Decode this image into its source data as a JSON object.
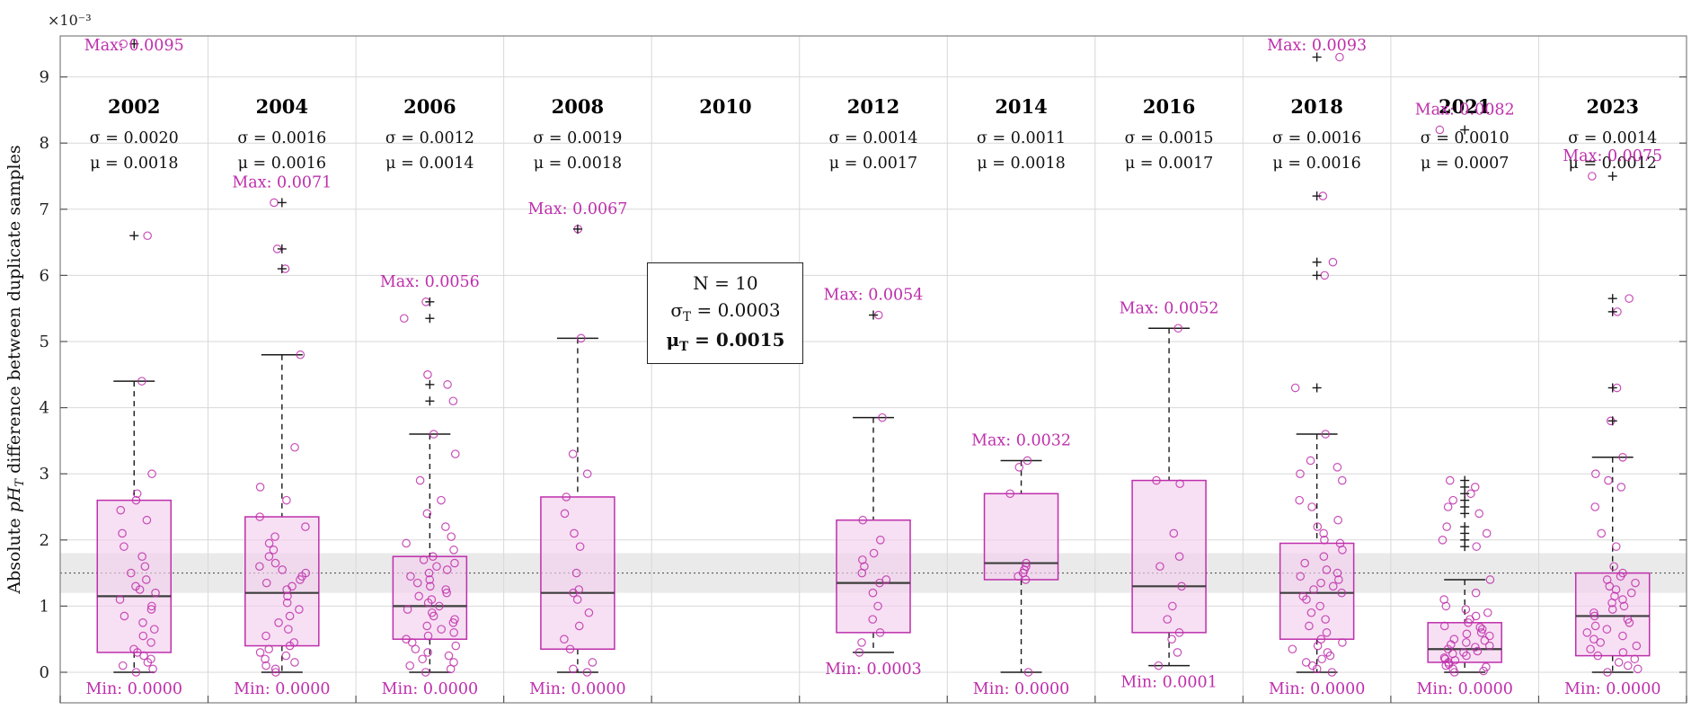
{
  "figure": {
    "ylabel_pre": "Absolute ",
    "ylabel_ph": "pH",
    "ylabel_sub": "T",
    "ylabel_post": " difference between duplicate samples",
    "exponent_label": "×10⁻³"
  },
  "chart_data": {
    "type": "boxplot-scatter",
    "title": "",
    "values_scale": "all numeric values are in units of 10⁻³ pH",
    "y_ticks": [
      0,
      1,
      2,
      3,
      4,
      5,
      6,
      7,
      8,
      9
    ],
    "y_range": [
      -0.45,
      9.6
    ],
    "grid": true,
    "target_band": {
      "low": 1.2,
      "high": 1.8,
      "center": 1.5
    },
    "annotation": {
      "anchor_year": "2010",
      "line1": "N = 10",
      "line2_sym": "σ",
      "line2_sub": "T",
      "line2_rest": " = 0.0003",
      "line3_sym": "μ",
      "line3_sub": "T",
      "line3_rest": " = 0.0015"
    },
    "colors": {
      "magenta": "#BE2FAC",
      "box_fill": "#F3D0EC",
      "median": "#3d3d3d",
      "band": "#d9d9d9",
      "marker": "#1a1a1a"
    },
    "groups": [
      {
        "label": "2002",
        "sigma": "σ = 0.0020",
        "mu": "μ = 0.0018",
        "max_label": "Max: 0.0095",
        "min_label": "Min: 0.0000",
        "max_value": 9.5,
        "box": {
          "q1": 0.3,
          "median": 1.15,
          "q3": 2.6,
          "wlo": 0.0,
          "whi": 4.4
        },
        "points": [
          9.5,
          6.6,
          4.4,
          3.0,
          2.7,
          2.6,
          2.45,
          2.3,
          2.1,
          1.9,
          1.75,
          1.6,
          1.5,
          1.4,
          1.3,
          1.25,
          1.2,
          1.1,
          1.0,
          0.95,
          0.85,
          0.75,
          0.65,
          0.55,
          0.45,
          0.35,
          0.3,
          0.25,
          0.2,
          0.15,
          0.1,
          0.05,
          0.0
        ],
        "outliers": [
          6.6,
          9.5
        ]
      },
      {
        "label": "2004",
        "sigma": "σ = 0.0016",
        "mu": "μ = 0.0016",
        "max_label": "Max: 0.0071",
        "min_label": "Min: 0.0000",
        "max_value": 7.1,
        "box": {
          "q1": 0.4,
          "median": 1.2,
          "q3": 2.35,
          "wlo": 0.0,
          "whi": 4.8
        },
        "points": [
          7.1,
          6.4,
          6.1,
          4.8,
          3.4,
          2.8,
          2.6,
          2.35,
          2.2,
          2.05,
          1.95,
          1.85,
          1.75,
          1.65,
          1.6,
          1.55,
          1.5,
          1.45,
          1.4,
          1.35,
          1.3,
          1.25,
          1.15,
          1.05,
          0.95,
          0.85,
          0.75,
          0.65,
          0.55,
          0.45,
          0.4,
          0.35,
          0.3,
          0.25,
          0.2,
          0.15,
          0.1,
          0.05,
          0.0
        ],
        "outliers": [
          6.1,
          6.4,
          7.1
        ]
      },
      {
        "label": "2006",
        "sigma": "σ = 0.0012",
        "mu": "μ = 0.0014",
        "max_label": "Max: 0.0056",
        "min_label": "Min: 0.0000",
        "max_value": 5.6,
        "box": {
          "q1": 0.5,
          "median": 1.0,
          "q3": 1.75,
          "wlo": 0.0,
          "whi": 3.6
        },
        "points": [
          5.6,
          5.35,
          4.5,
          4.35,
          4.1,
          3.6,
          3.3,
          2.9,
          2.6,
          2.4,
          2.2,
          2.05,
          1.95,
          1.85,
          1.75,
          1.7,
          1.65,
          1.6,
          1.55,
          1.5,
          1.45,
          1.4,
          1.35,
          1.3,
          1.25,
          1.2,
          1.15,
          1.1,
          1.05,
          1.0,
          0.95,
          0.9,
          0.85,
          0.8,
          0.75,
          0.7,
          0.65,
          0.6,
          0.55,
          0.5,
          0.45,
          0.4,
          0.35,
          0.3,
          0.25,
          0.2,
          0.15,
          0.1,
          0.05,
          0.0
        ],
        "outliers": [
          4.1,
          4.35,
          5.35,
          5.6
        ]
      },
      {
        "label": "2008",
        "sigma": "σ = 0.0019",
        "mu": "μ = 0.0018",
        "max_label": "Max: 0.0067",
        "min_label": "Min: 0.0000",
        "max_value": 6.7,
        "box": {
          "q1": 0.35,
          "median": 1.2,
          "q3": 2.65,
          "wlo": 0.0,
          "whi": 5.05
        },
        "points": [
          6.7,
          5.05,
          3.3,
          3.0,
          2.65,
          2.4,
          2.1,
          1.9,
          1.5,
          1.25,
          1.2,
          1.1,
          0.9,
          0.7,
          0.5,
          0.35,
          0.15,
          0.05,
          0.0
        ],
        "outliers": [
          6.7
        ]
      },
      {
        "label": "2010",
        "sigma": "",
        "mu": "",
        "max_label": "",
        "min_label": "",
        "max_value": null,
        "box": null,
        "points": [],
        "outliers": []
      },
      {
        "label": "2012",
        "sigma": "σ = 0.0014",
        "mu": "μ = 0.0017",
        "max_label": "Max: 0.0054",
        "min_label": "Min: 0.0003",
        "max_value": 5.4,
        "box": {
          "q1": 0.6,
          "median": 1.35,
          "q3": 2.3,
          "wlo": 0.3,
          "whi": 3.85
        },
        "points": [
          5.4,
          3.85,
          2.3,
          2.0,
          1.8,
          1.7,
          1.6,
          1.5,
          1.4,
          1.35,
          1.2,
          1.0,
          0.8,
          0.6,
          0.45,
          0.3
        ],
        "outliers": [
          5.4
        ]
      },
      {
        "label": "2014",
        "sigma": "σ = 0.0011",
        "mu": "μ = 0.0018",
        "max_label": "Max: 0.0032",
        "min_label": "Min: 0.0000",
        "max_value": 3.2,
        "box": {
          "q1": 1.4,
          "median": 1.65,
          "q3": 2.7,
          "wlo": 0.0,
          "whi": 3.2
        },
        "points": [
          3.2,
          3.1,
          2.7,
          1.65,
          1.6,
          1.55,
          1.5,
          1.45,
          1.4,
          0.0
        ],
        "outliers": []
      },
      {
        "label": "2016",
        "sigma": "σ = 0.0015",
        "mu": "μ = 0.0017",
        "max_label": "Max: 0.0052",
        "min_label": "Min: 0.0001",
        "max_value": 5.2,
        "box": {
          "q1": 0.6,
          "median": 1.3,
          "q3": 2.9,
          "wlo": 0.1,
          "whi": 5.2
        },
        "points": [
          5.2,
          2.9,
          2.85,
          2.1,
          1.75,
          1.6,
          1.3,
          1.0,
          0.8,
          0.6,
          0.5,
          0.3,
          0.1
        ],
        "outliers": []
      },
      {
        "label": "2018",
        "sigma": "σ = 0.0016",
        "mu": "μ = 0.0016",
        "max_label": "Max: 0.0093",
        "min_label": "Min: 0.0000",
        "max_value": 9.3,
        "box": {
          "q1": 0.5,
          "median": 1.2,
          "q3": 1.95,
          "wlo": 0.0,
          "whi": 3.6
        },
        "points": [
          9.3,
          7.2,
          6.2,
          6.0,
          4.3,
          3.6,
          3.2,
          3.1,
          3.0,
          2.9,
          2.6,
          2.5,
          2.3,
          2.2,
          2.1,
          2.0,
          1.95,
          1.85,
          1.75,
          1.65,
          1.55,
          1.5,
          1.45,
          1.4,
          1.35,
          1.3,
          1.25,
          1.2,
          1.15,
          1.1,
          1.0,
          0.9,
          0.8,
          0.7,
          0.6,
          0.5,
          0.45,
          0.4,
          0.35,
          0.3,
          0.25,
          0.2,
          0.15,
          0.1,
          0.05,
          0.0
        ],
        "outliers": [
          4.3,
          6.0,
          6.2,
          7.2,
          9.3
        ]
      },
      {
        "label": "2021",
        "sigma": "σ = 0.0010",
        "mu": "μ = 0.0007",
        "max_label": "Max: 0.0082",
        "min_label": "Min: 0.0000",
        "max_value": 8.2,
        "box": {
          "q1": 0.15,
          "median": 0.35,
          "q3": 0.75,
          "wlo": 0.0,
          "whi": 1.4
        },
        "points": [
          8.2,
          2.9,
          2.8,
          2.7,
          2.6,
          2.5,
          2.4,
          2.2,
          2.1,
          2.0,
          1.9,
          1.4,
          1.2,
          1.1,
          1.0,
          0.95,
          0.9,
          0.85,
          0.8,
          0.75,
          0.7,
          0.68,
          0.65,
          0.6,
          0.58,
          0.55,
          0.5,
          0.48,
          0.45,
          0.42,
          0.4,
          0.38,
          0.35,
          0.32,
          0.3,
          0.28,
          0.25,
          0.22,
          0.2,
          0.18,
          0.15,
          0.12,
          0.1,
          0.08,
          0.05,
          0.02,
          0.0
        ],
        "outliers": [
          1.9,
          2.0,
          2.1,
          2.2,
          2.4,
          2.5,
          2.6,
          2.7,
          2.8,
          2.9,
          8.2
        ]
      },
      {
        "label": "2023",
        "sigma": "σ = 0.0014",
        "mu": "μ = 0.0012",
        "max_label": "Max: 0.0075",
        "min_label": "Min: 0.0000",
        "max_value": 7.5,
        "box": {
          "q1": 0.25,
          "median": 0.85,
          "q3": 1.5,
          "wlo": 0.0,
          "whi": 3.25
        },
        "points": [
          7.5,
          5.65,
          5.45,
          4.3,
          3.8,
          3.25,
          3.0,
          2.9,
          2.8,
          2.5,
          2.1,
          1.9,
          1.6,
          1.5,
          1.45,
          1.4,
          1.35,
          1.3,
          1.25,
          1.2,
          1.15,
          1.1,
          1.05,
          1.0,
          0.95,
          0.9,
          0.85,
          0.8,
          0.75,
          0.7,
          0.65,
          0.6,
          0.55,
          0.5,
          0.45,
          0.4,
          0.35,
          0.3,
          0.25,
          0.2,
          0.15,
          0.1,
          0.05,
          0.0
        ],
        "outliers": [
          3.8,
          4.3,
          5.45,
          5.65,
          7.5
        ]
      }
    ]
  }
}
